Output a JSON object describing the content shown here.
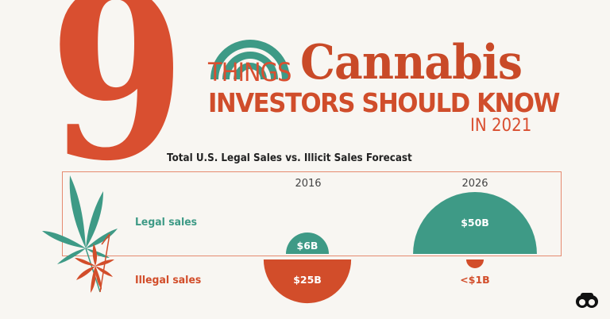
{
  "header": {
    "number": "9",
    "things": "THINGS",
    "cannabis": "Cannabis",
    "investors": "INVESTORS SHOULD KNOW",
    "year": "IN 2021"
  },
  "colors": {
    "legal": "#3e9a86",
    "illegal": "#d24d2a",
    "accent": "#d94f30",
    "frame": "#e58a70"
  },
  "chart_data": {
    "type": "proportional-semicircle",
    "title": "Total U.S. Legal Sales vs. Illicit Sales Forecast",
    "categories": [
      "2016",
      "2026"
    ],
    "series": [
      {
        "name": "Legal sales",
        "values": [
          6,
          50
        ],
        "labels": [
          "$6B",
          "$50B"
        ],
        "direction": "up"
      },
      {
        "name": "Illegal sales",
        "values": [
          25,
          1
        ],
        "labels": [
          "$25B",
          "<$1B"
        ],
        "direction": "down"
      }
    ],
    "unit": "billion USD"
  },
  "icons": [
    "cannabis-leaf-icon",
    "rainbow-arc-icon",
    "binoculars-logo-icon"
  ]
}
